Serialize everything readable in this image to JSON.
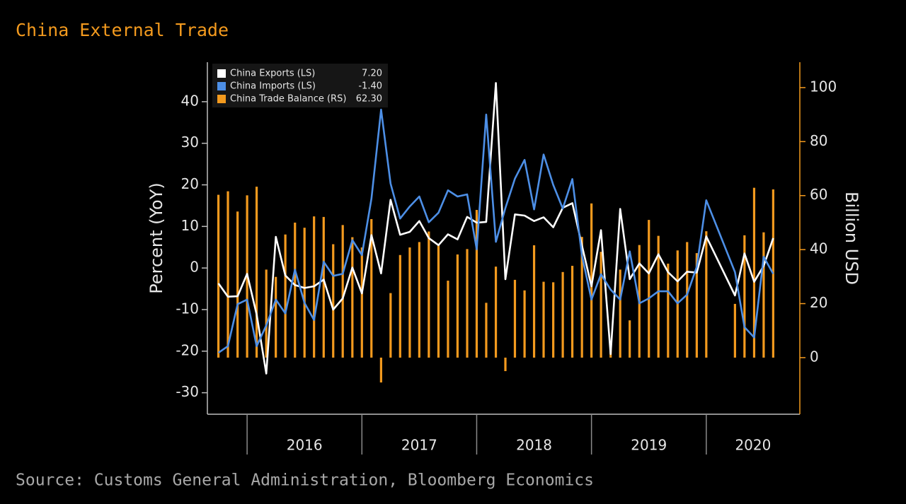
{
  "chart_data": {
    "type": "line_bar",
    "title": "China External Trade",
    "source": "Source: Customs General Administration, Bloomberg Economics",
    "ylabel": "Percent (YoY)",
    "y2label": "Billion USD",
    "xlim": [
      2015.654,
      2020.815
    ],
    "xticks": [
      {
        "value": 2016,
        "label": "2016"
      },
      {
        "value": 2017,
        "label": "2017"
      },
      {
        "value": 2018,
        "label": "2018"
      },
      {
        "value": 2019,
        "label": "2019"
      },
      {
        "value": 2020,
        "label": "2020"
      }
    ],
    "ylim": [
      -35,
      49.5
    ],
    "yticks": [
      -30,
      -20,
      -10,
      0,
      10,
      20,
      30,
      40
    ],
    "y2lim": [
      -20.7,
      109.4
    ],
    "y2ticks": [
      0,
      20,
      40,
      60,
      80,
      100
    ],
    "x": [
      2015.75,
      2015.833,
      2015.917,
      2016,
      2016.083,
      2016.167,
      2016.25,
      2016.333,
      2016.417,
      2016.5,
      2016.583,
      2016.667,
      2016.75,
      2016.833,
      2016.917,
      2017,
      2017.083,
      2017.167,
      2017.25,
      2017.333,
      2017.417,
      2017.5,
      2017.583,
      2017.667,
      2017.75,
      2017.833,
      2017.917,
      2018,
      2018.083,
      2018.167,
      2018.25,
      2018.333,
      2018.417,
      2018.5,
      2018.583,
      2018.667,
      2018.75,
      2018.833,
      2018.917,
      2019,
      2019.083,
      2019.167,
      2019.25,
      2019.333,
      2019.417,
      2019.5,
      2019.583,
      2019.667,
      2019.75,
      2019.833,
      2019.917,
      2020,
      2020.25,
      2020.333,
      2020.417,
      2020.5,
      2020.583
    ],
    "series": [
      {
        "name": "China Exports (LS)",
        "legend_value": "7.20",
        "color": "#ffffff",
        "kind": "line",
        "axis": "y",
        "values": [
          -3.7,
          -6.9,
          -6.8,
          -1.4,
          -11.2,
          -25.4,
          7.5,
          -1.8,
          -4.1,
          -4.8,
          -4.4,
          -2.8,
          -10.0,
          -7.3,
          0.1,
          -6.1,
          7.9,
          -1.3,
          16.4,
          8.0,
          8.7,
          11.3,
          7.2,
          5.5,
          8.1,
          6.9,
          12.3,
          10.9,
          11.1,
          44.5,
          -2.7,
          12.9,
          12.6,
          11.3,
          12.2,
          9.8,
          14.5,
          15.6,
          5.4,
          -4.4,
          9.1,
          -20.7,
          14.2,
          -2.7,
          1.1,
          -1.3,
          3.3,
          -1.0,
          -3.2,
          -0.9,
          -1.1,
          7.6,
          -6.6,
          3.5,
          -3.3,
          0.5,
          7.2
        ]
      },
      {
        "name": "China Imports (LS)",
        "legend_value": "-1.40",
        "color": "#4d8fe6",
        "kind": "line",
        "axis": "y",
        "values": [
          -20.4,
          -18.8,
          -8.7,
          -7.6,
          -18.8,
          -13.8,
          -7.6,
          -10.9,
          -0.4,
          -8.4,
          -12.5,
          1.5,
          -1.9,
          -1.4,
          6.7,
          3.1,
          16.7,
          38.1,
          20.3,
          11.9,
          14.8,
          17.2,
          11.0,
          13.3,
          18.7,
          17.2,
          17.7,
          4.5,
          36.9,
          6.3,
          14.4,
          21.5,
          26.0,
          14.1,
          27.3,
          20.0,
          14.3,
          21.4,
          3.0,
          -7.6,
          -1.5,
          -5.2,
          -7.6,
          4.0,
          -8.5,
          -7.3,
          -5.6,
          -5.6,
          -8.5,
          -6.4,
          0.3,
          16.3,
          -1.0,
          -14.2,
          -16.7,
          2.7,
          -1.4
        ]
      },
      {
        "name": "China Trade Balance (RS)",
        "legend_value": "62.30",
        "color": "#f39a1e",
        "kind": "bar",
        "axis": "y2",
        "values": [
          60.3,
          61.6,
          54.1,
          60.1,
          63.3,
          32.6,
          29.9,
          45.6,
          50.0,
          48.1,
          52.3,
          52.1,
          42.0,
          49.1,
          44.6,
          40.8,
          51.3,
          -9.2,
          23.9,
          38.0,
          40.8,
          42.8,
          46.7,
          42.0,
          28.5,
          38.2,
          40.2,
          54.7,
          20.3,
          33.7,
          -5.0,
          28.8,
          24.9,
          41.6,
          28.1,
          27.9,
          31.7,
          34.0,
          44.7,
          57.1,
          39.2,
          4.1,
          32.6,
          13.8,
          41.7,
          51.0,
          45.1,
          34.8,
          39.7,
          42.8,
          38.7,
          46.8,
          19.9,
          45.3,
          62.9,
          46.4,
          62.3
        ]
      }
    ]
  }
}
